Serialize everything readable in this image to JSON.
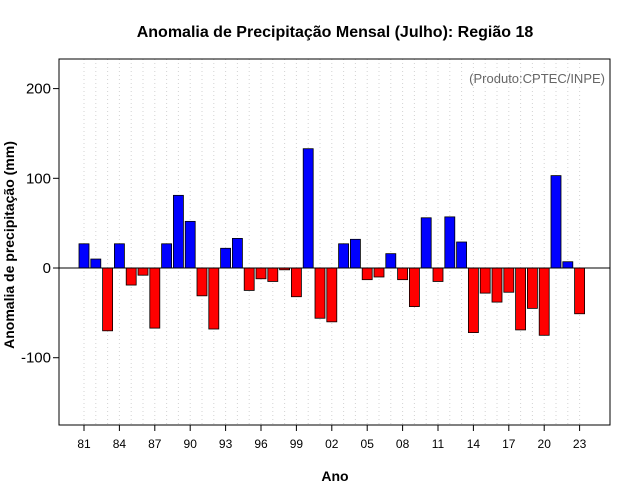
{
  "chart_data": {
    "type": "bar",
    "title": "Anomalia de Precipitação Mensal (Julho): Região 18",
    "credit": "(Produto:CPTEC/INPE)",
    "xlabel": "Ano",
    "ylabel": "Anomalia de precipitação (mm)",
    "ylim": [
      -175,
      233
    ],
    "yticks": [
      -100,
      0,
      100,
      200
    ],
    "ytick_labels": [
      "-100",
      "0",
      "100",
      "200"
    ],
    "xtick_labels": [
      "81",
      "84",
      "87",
      "90",
      "93",
      "96",
      "99",
      "02",
      "05",
      "08",
      "11",
      "14",
      "17",
      "20",
      "23"
    ],
    "grid": "vertical dotted",
    "colors": {
      "positive": "#0000ff",
      "negative": "#ff0000",
      "zero_line": "#000000",
      "grid": "#d3d3d3"
    },
    "categories": [
      "1981",
      "1982",
      "1983",
      "1984",
      "1985",
      "1986",
      "1987",
      "1988",
      "1989",
      "1990",
      "1991",
      "1992",
      "1993",
      "1994",
      "1995",
      "1996",
      "1997",
      "1998",
      "1999",
      "2000",
      "2001",
      "2002",
      "2003",
      "2004",
      "2005",
      "2006",
      "2007",
      "2008",
      "2009",
      "2010",
      "2011",
      "2012",
      "2013",
      "2014",
      "2015",
      "2016",
      "2017",
      "2018",
      "2019",
      "2020",
      "2021",
      "2022",
      "2023"
    ],
    "values": [
      27,
      10,
      -70,
      27,
      -19,
      -8,
      -67,
      27,
      81,
      52,
      -31,
      -68,
      22,
      33,
      -25,
      -12,
      -15,
      -2,
      -32,
      133,
      -56,
      -60,
      27,
      32,
      -13,
      -10,
      16,
      -13,
      -43,
      56,
      -15,
      57,
      29,
      -72,
      -28,
      -38,
      -27,
      -69,
      -45,
      -75,
      103,
      7,
      -51
    ]
  }
}
